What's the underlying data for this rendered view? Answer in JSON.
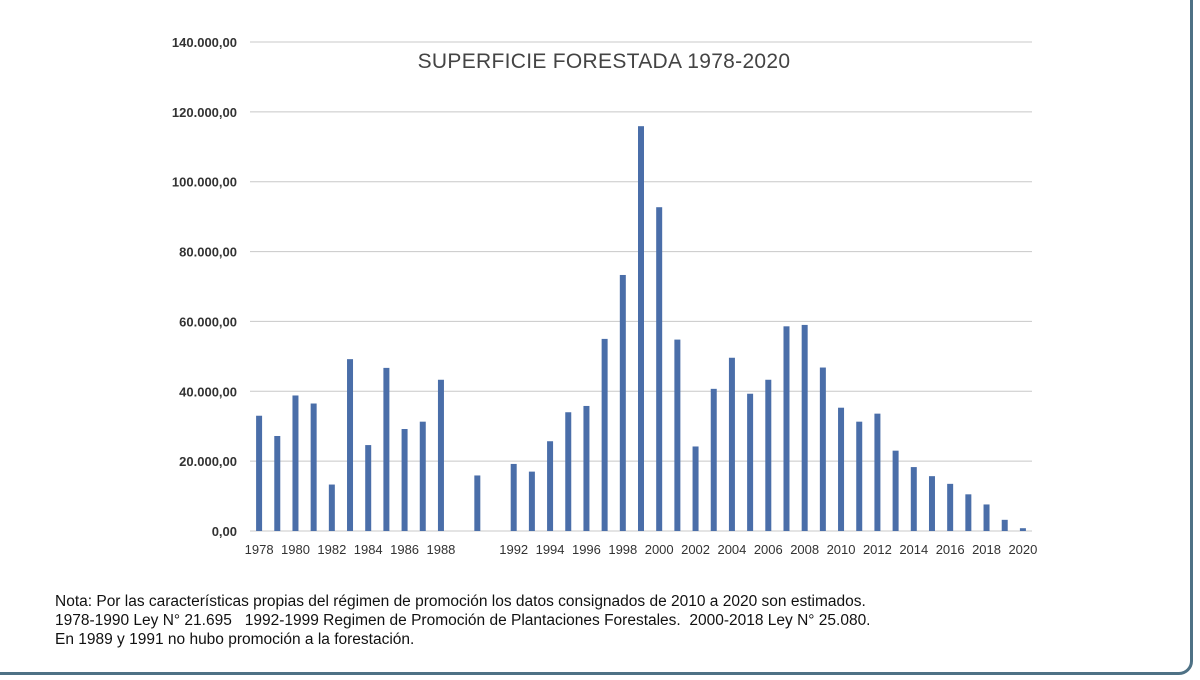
{
  "chart_data": {
    "type": "bar",
    "title": "SUPERFICIE FORESTADA 1978-2020",
    "xlabel": "",
    "ylabel": "",
    "ylim": [
      0,
      140000
    ],
    "yticks": [
      "0,00",
      "20.000,00",
      "40.000,00",
      "60.000,00",
      "80.000,00",
      "100.000,00",
      "120.000,00",
      "140.000,00"
    ],
    "xtick_labels": [
      "1978",
      "1980",
      "1982",
      "1984",
      "1986",
      "1988",
      "1992",
      "1994",
      "1996",
      "1998",
      "2000",
      "2002",
      "2004",
      "2006",
      "2008",
      "2010",
      "2012",
      "2014",
      "2016",
      "2018",
      "2020"
    ],
    "grid": true,
    "legend": "none",
    "bar_color": "#4a6ea9",
    "categories": [
      "1978",
      "1979",
      "1980",
      "1981",
      "1982",
      "1983",
      "1984",
      "1985",
      "1986",
      "1987",
      "1988",
      "1990",
      "1992",
      "1993",
      "1994",
      "1995",
      "1996",
      "1997",
      "1998",
      "1999",
      "2000",
      "2001",
      "2002",
      "2003",
      "2004",
      "2005",
      "2006",
      "2007",
      "2008",
      "2009",
      "2010",
      "2011",
      "2012",
      "2013",
      "2014",
      "2015",
      "2016",
      "2017",
      "2018",
      "2019",
      "2020"
    ],
    "values": [
      33000,
      27200,
      38800,
      36500,
      13300,
      49200,
      24600,
      46700,
      29200,
      31300,
      43300,
      15900,
      19200,
      17000,
      25700,
      34000,
      35800,
      55000,
      73300,
      115900,
      92700,
      54800,
      24200,
      40700,
      49600,
      39300,
      43300,
      58600,
      59000,
      46800,
      35300,
      31300,
      33600,
      23000,
      18300,
      15700,
      13500,
      10500,
      7600,
      3200,
      800
    ]
  },
  "notes": {
    "line1": "Nota: Por las características propias del régimen de promoción los datos consignados de 2010 a 2020 son estimados.",
    "line2": "1978-1990 Ley N° 21.695   1992-1999 Regimen de Promoción de Plantaciones Forestales.  2000-2018 Ley N° 25.080.",
    "line3": "En 1989 y 1991 no hubo promoción a la forestación."
  }
}
